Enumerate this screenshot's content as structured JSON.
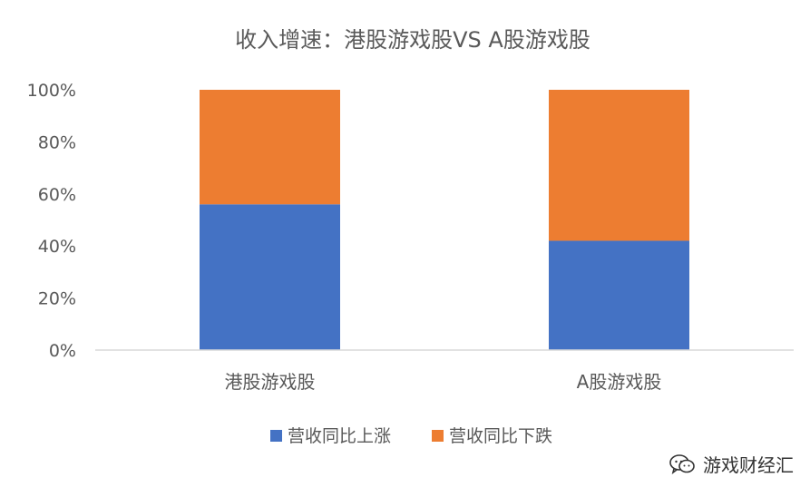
{
  "chart_data": {
    "type": "bar",
    "stacked": true,
    "title": "收入增速：港股游戏股VS A股游戏股",
    "categories": [
      "港股游戏股",
      "A股游戏股"
    ],
    "series": [
      {
        "name": "营收同比上涨",
        "values": [
          56,
          42
        ],
        "color": "#4472C4"
      },
      {
        "name": "营收同比下跌",
        "values": [
          44,
          58
        ],
        "color": "#ED7D31"
      }
    ],
    "yticks": [
      "0%",
      "20%",
      "40%",
      "60%",
      "80%",
      "100%"
    ],
    "ylim": [
      0,
      100
    ],
    "legend_position": "bottom",
    "grid": false
  },
  "watermark": {
    "text": "游戏财经汇",
    "icon": "wechat-icon"
  }
}
